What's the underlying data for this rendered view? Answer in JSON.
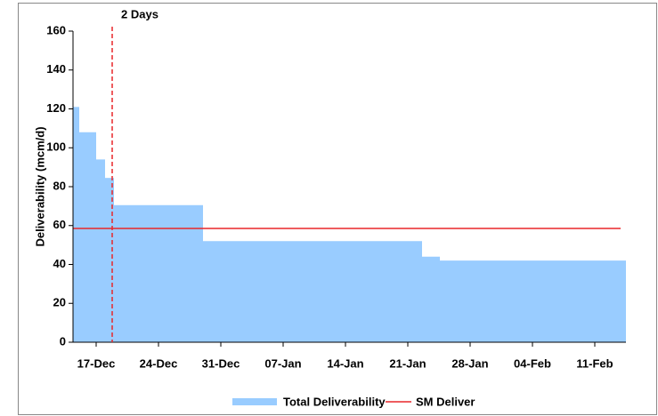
{
  "chart_data": {
    "type": "step-area",
    "ylabel": "Deliverability (mcm/d)",
    "xlim": [
      -2.6,
      59.5
    ],
    "xticks": [
      {
        "value": 0,
        "label": "17-Dec"
      },
      {
        "value": 7,
        "label": "24-Dec"
      },
      {
        "value": 14,
        "label": "31-Dec"
      },
      {
        "value": 21,
        "label": "07-Jan"
      },
      {
        "value": 28,
        "label": "14-Jan"
      },
      {
        "value": 35,
        "label": "21-Jan"
      },
      {
        "value": 42,
        "label": "28-Jan"
      },
      {
        "value": 49,
        "label": "04-Feb"
      },
      {
        "value": 56,
        "label": "11-Feb"
      }
    ],
    "ylim": [
      0,
      160
    ],
    "yticks": [
      0,
      20,
      40,
      60,
      80,
      100,
      120,
      140,
      160
    ],
    "series": [
      {
        "name": "Total Deliverability",
        "color": "#99ccff",
        "x": [
          -2.6,
          -1.9,
          0,
          1,
          2,
          12,
          36.6,
          38.6
        ],
        "values": [
          121,
          108,
          94,
          84.5,
          70.5,
          52,
          44,
          42
        ]
      },
      {
        "name": "SM Deliver",
        "color": "#e8262a",
        "value": 58.5
      }
    ],
    "annotations": [
      {
        "label": "2 Days",
        "x": 1.8,
        "color": "#e8262a"
      }
    ]
  }
}
